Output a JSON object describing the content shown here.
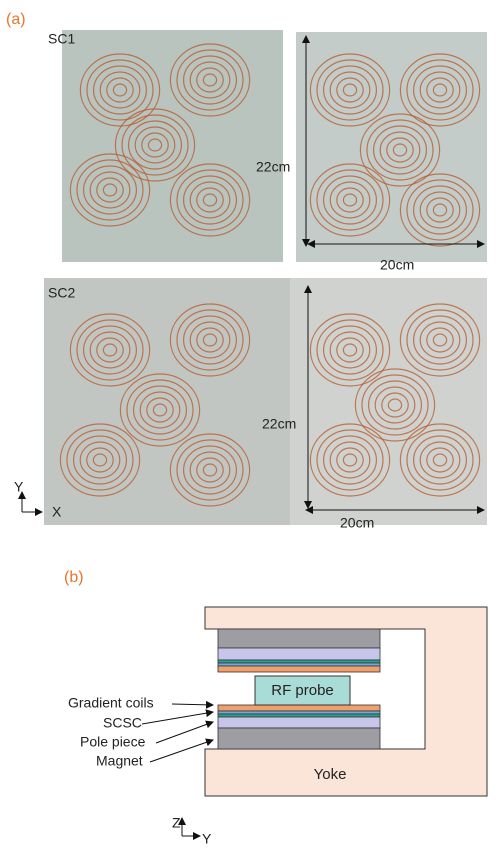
{
  "panel_a": {
    "label": "(a)",
    "sc1": {
      "label": "SC1",
      "height": "22cm",
      "width": "20cm"
    },
    "sc2": {
      "label": "SC2",
      "height": "22cm",
      "width": "20cm"
    },
    "axes": {
      "vertical": "Y",
      "horizontal": "X"
    }
  },
  "panel_b": {
    "label": "(b)",
    "labels": {
      "gradient_coils": "Gradient coils",
      "scsc": "SCSC",
      "pole_piece": "Pole piece",
      "magnet": "Magnet"
    },
    "rf_probe": "RF probe",
    "yoke": "Yoke",
    "axes": {
      "vertical": "Z",
      "horizontal": "Y"
    }
  }
}
